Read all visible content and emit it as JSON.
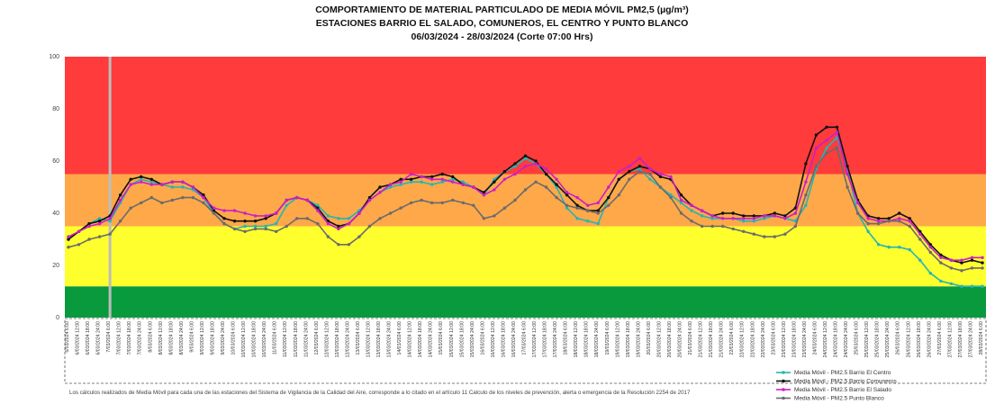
{
  "header": {
    "title": "COMPORTAMIENTO DE MATERIAL PARTICULADO DE MEDIA MÓVIL PM2,5 (µg/m³)",
    "subtitle": "ESTACIONES BARRIO EL SALADO, COMUNEROS, EL CENTRO Y PUNTO BLANCO",
    "period": "06/03/2024 - 28/03/2024 (Corte 07:00 Hrs)"
  },
  "footnote": "Los cálculos realizados de Media Móvil para cada una de las estaciones del Sistema de Vigilancia de la Calidad del Aire, corresponde a lo citado en el artículo 11 Calculo de los niveles de prevención, alerta o emergencia de la Resolución 2254 de 2017",
  "colors": {
    "band_green": "#0a9a3e",
    "band_yellow": "#ffff2e",
    "band_orange": "#ffa84a",
    "band_red": "#ff3b3b",
    "centro": "#26b5b0",
    "comuneros": "#111111",
    "salado": "#cc1fc8",
    "punto_blanco": "#6b6b6b",
    "marker_line": "#bdbdbd"
  },
  "chart_data": {
    "type": "line",
    "ylim": [
      0,
      100
    ],
    "yticks": [
      0,
      20,
      40,
      60,
      80,
      100
    ],
    "bands": [
      {
        "from": 0,
        "to": 12,
        "color": "#0a9a3e"
      },
      {
        "from": 12,
        "to": 35,
        "color": "#ffff2e"
      },
      {
        "from": 35,
        "to": 55,
        "color": "#ffa84a"
      },
      {
        "from": 55,
        "to": 100,
        "color": "#ff3b3b"
      }
    ],
    "reference_line_index": 4,
    "x": [
      "6/03/2024 6:00",
      "6/03/2024 12:00",
      "6/03/2024 18:00",
      "6/03/2024 24:00",
      "7/03/2024 6:00",
      "7/03/2024 12:00",
      "7/03/2024 18:00",
      "7/03/2024 24:00",
      "8/03/2024 6:00",
      "8/03/2024 12:00",
      "8/03/2024 18:00",
      "8/03/2024 24:00",
      "9/03/2024 6:00",
      "9/03/2024 12:00",
      "9/03/2024 18:00",
      "9/03/2024 24:00",
      "10/03/2024 6:00",
      "10/03/2024 12:00",
      "10/03/2024 18:00",
      "10/03/2024 24:00",
      "11/03/2024 6:00",
      "11/03/2024 12:00",
      "11/03/2024 18:00",
      "11/03/2024 24:00",
      "12/03/2024 6:00",
      "12/03/2024 12:00",
      "12/03/2024 18:00",
      "12/03/2024 24:00",
      "13/03/2024 6:00",
      "13/03/2024 12:00",
      "13/03/2024 18:00",
      "13/03/2024 24:00",
      "14/03/2024 6:00",
      "14/03/2024 12:00",
      "14/03/2024 18:00",
      "14/03/2024 24:00",
      "15/03/2024 6:00",
      "15/03/2024 12:00",
      "15/03/2024 18:00",
      "15/03/2024 24:00",
      "16/03/2024 6:00",
      "16/03/2024 12:00",
      "16/03/2024 18:00",
      "16/03/2024 24:00",
      "17/03/2024 6:00",
      "17/03/2024 12:00",
      "17/03/2024 18:00",
      "17/03/2024 24:00",
      "18/03/2024 6:00",
      "18/03/2024 12:00",
      "18/03/2024 18:00",
      "18/03/2024 24:00",
      "19/03/2024 6:00",
      "19/03/2024 12:00",
      "19/03/2024 18:00",
      "19/03/2024 24:00",
      "20/03/2024 6:00",
      "20/03/2024 12:00",
      "20/03/2024 18:00",
      "20/03/2024 24:00",
      "21/03/2024 6:00",
      "21/03/2024 12:00",
      "21/03/2024 18:00",
      "21/03/2024 24:00",
      "22/03/2024 6:00",
      "22/03/2024 12:00",
      "22/03/2024 18:00",
      "22/03/2024 24:00",
      "23/03/2024 6:00",
      "23/03/2024 12:00",
      "23/03/2024 18:00",
      "23/03/2024 24:00",
      "24/03/2024 6:00",
      "24/03/2024 12:00",
      "24/03/2024 18:00",
      "24/03/2024 24:00",
      "25/03/2024 6:00",
      "25/03/2024 12:00",
      "25/03/2024 18:00",
      "25/03/2024 24:00",
      "26/03/2024 6:00",
      "26/03/2024 12:00",
      "26/03/2024 18:00",
      "26/03/2024 24:00",
      "27/03/2024 6:00",
      "27/03/2024 12:00",
      "27/03/2024 18:00",
      "27/03/2024 24:00",
      "28/03/2024 6:00"
    ],
    "series": [
      {
        "name": "Media Móvil - PM2.5 Barrio El Centro",
        "color": "#26b5b0",
        "values": [
          30,
          33,
          36,
          38,
          37,
          44,
          51,
          53,
          52,
          51,
          50,
          50,
          49,
          46,
          40,
          36,
          34,
          35,
          35,
          35,
          36,
          43,
          46,
          45,
          43,
          39,
          38,
          38,
          41,
          45,
          48,
          50,
          51,
          52,
          52,
          51,
          52,
          53,
          52,
          50,
          47,
          53,
          56,
          58,
          61,
          59,
          55,
          50,
          42,
          38,
          37,
          36,
          46,
          53,
          56,
          57,
          53,
          50,
          47,
          44,
          41,
          39,
          38,
          38,
          38,
          37,
          37,
          38,
          39,
          38,
          37,
          43,
          57,
          65,
          69,
          57,
          40,
          33,
          28,
          27,
          27,
          26,
          22,
          17,
          14,
          13,
          12,
          12,
          12
        ]
      },
      {
        "name": "Media Móvil - PM2.5 Barrio Comuneros",
        "color": "#111111",
        "values": [
          30,
          33,
          36,
          37,
          39,
          47,
          53,
          54,
          53,
          51,
          52,
          52,
          50,
          47,
          41,
          38,
          37,
          37,
          37,
          38,
          40,
          45,
          46,
          45,
          42,
          37,
          35,
          36,
          40,
          46,
          50,
          51,
          53,
          53,
          54,
          54,
          55,
          54,
          51,
          50,
          48,
          52,
          56,
          59,
          62,
          60,
          55,
          51,
          47,
          43,
          41,
          41,
          46,
          53,
          56,
          58,
          57,
          54,
          53,
          47,
          43,
          41,
          39,
          40,
          40,
          39,
          39,
          39,
          40,
          39,
          42,
          59,
          70,
          73,
          73,
          58,
          45,
          39,
          38,
          38,
          40,
          38,
          33,
          28,
          24,
          22,
          21,
          22,
          21
        ]
      },
      {
        "name": "Media Móvil - PM2.5 Barrio El Salado",
        "color": "#cc1fc8",
        "values": [
          31,
          33,
          35,
          36,
          38,
          45,
          51,
          52,
          51,
          51,
          52,
          52,
          50,
          46,
          42,
          41,
          41,
          40,
          39,
          39,
          40,
          45,
          46,
          45,
          41,
          36,
          34,
          36,
          40,
          45,
          48,
          51,
          52,
          55,
          54,
          53,
          53,
          52,
          51,
          50,
          47,
          49,
          53,
          55,
          58,
          59,
          57,
          53,
          48,
          46,
          43,
          44,
          50,
          56,
          58,
          61,
          57,
          55,
          54,
          45,
          43,
          41,
          39,
          38,
          38,
          38,
          38,
          39,
          39,
          38,
          40,
          52,
          65,
          68,
          71,
          55,
          44,
          38,
          37,
          37,
          38,
          37,
          32,
          27,
          23,
          22,
          22,
          23,
          23
        ]
      },
      {
        "name": "Media Móvil - PM2.5 Punto Blanco",
        "color": "#6b6b6b",
        "values": [
          27,
          28,
          30,
          31,
          32,
          37,
          42,
          44,
          46,
          44,
          45,
          46,
          46,
          44,
          40,
          36,
          34,
          33,
          34,
          34,
          33,
          35,
          38,
          38,
          36,
          31,
          28,
          28,
          31,
          35,
          38,
          40,
          42,
          44,
          45,
          44,
          44,
          45,
          44,
          43,
          38,
          39,
          42,
          45,
          49,
          52,
          50,
          46,
          43,
          42,
          41,
          40,
          43,
          47,
          53,
          56,
          55,
          50,
          46,
          40,
          37,
          35,
          35,
          35,
          34,
          33,
          32,
          31,
          31,
          32,
          35,
          47,
          58,
          63,
          65,
          50,
          40,
          36,
          36,
          37,
          37,
          35,
          30,
          25,
          21,
          19,
          18,
          19,
          19
        ]
      }
    ]
  }
}
